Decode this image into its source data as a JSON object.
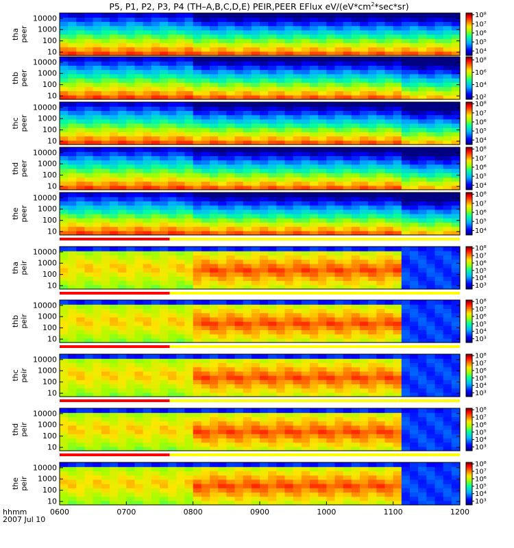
{
  "chart_data": {
    "type": "heatmap",
    "title": "P5, P1, P2, P3, P4 (TH-A,B,C,D,E) PEIR,PEER EFlux eV/(eV*cm^2*sec*sr)",
    "title_parts": {
      "main": "P5, P1, P2, P3, P4 (TH–A,B,C,D,E) PEIR,PEER EFlux eV/(eV*cm",
      "sup": "2",
      "tail": "*sec*sr)"
    },
    "x_axis": {
      "label_line1": "hhmm",
      "label_line2": "2007 Jul 10",
      "ticks": [
        "0600",
        "0700",
        "0800",
        "0900",
        "1000",
        "1100",
        "1200"
      ],
      "range_hours": [
        6,
        12
      ]
    },
    "y_axis": {
      "scale": "log",
      "ticks": [
        "10",
        "100",
        "1000",
        "10000"
      ],
      "range_eV": [
        5,
        30000
      ]
    },
    "panels": [
      {
        "probe": "tha",
        "species": "peer",
        "colorbar_ticks": [
          "10⁸",
          "10⁷",
          "10⁶",
          "10⁵",
          "10⁴"
        ],
        "flux_range": [
          3.5,
          8.2
        ]
      },
      {
        "probe": "thb",
        "species": "peer",
        "colorbar_ticks": [
          "10⁸",
          "10⁶",
          "10⁴",
          "10²"
        ],
        "flux_range": [
          1.6,
          8.5
        ]
      },
      {
        "probe": "thc",
        "species": "peer",
        "colorbar_ticks": [
          "10⁸",
          "10⁷",
          "10⁶",
          "10⁵",
          "10⁴"
        ],
        "flux_range": [
          3.5,
          8.2
        ]
      },
      {
        "probe": "thd",
        "species": "peer",
        "colorbar_ticks": [
          "10⁸",
          "10⁷",
          "10⁶",
          "10⁵",
          "10⁴"
        ],
        "flux_range": [
          3.5,
          8.2
        ]
      },
      {
        "probe": "the",
        "species": "peer",
        "colorbar_ticks": [
          "10⁸",
          "10⁷",
          "10⁶",
          "10⁵",
          "10⁴"
        ],
        "flux_range": [
          3.5,
          8.2
        ]
      },
      {
        "probe": "tha",
        "species": "peir",
        "colorbar_ticks": [
          "10⁸",
          "10⁷",
          "10⁶",
          "10⁵",
          "10⁴",
          "10³"
        ],
        "flux_range": [
          2.5,
          8.2
        ]
      },
      {
        "probe": "thb",
        "species": "peir",
        "colorbar_ticks": [
          "10⁸",
          "10⁷",
          "10⁶",
          "10⁵",
          "10⁴",
          "10³"
        ],
        "flux_range": [
          2.5,
          8.2
        ]
      },
      {
        "probe": "thc",
        "species": "peir",
        "colorbar_ticks": [
          "10⁸",
          "10⁷",
          "10⁶",
          "10⁵",
          "10⁴",
          "10³"
        ],
        "flux_range": [
          2.5,
          8.2
        ]
      },
      {
        "probe": "thd",
        "species": "peir",
        "colorbar_ticks": [
          "10⁸",
          "10⁷",
          "10⁶",
          "10⁵",
          "10⁴",
          "10³"
        ],
        "flux_range": [
          2.5,
          8.2
        ]
      },
      {
        "probe": "the",
        "species": "peir",
        "colorbar_ticks": [
          "10⁸",
          "10⁷",
          "10⁶",
          "10⁵",
          "10⁴",
          "10³"
        ],
        "flux_range": [
          2.5,
          8.2
        ]
      }
    ],
    "mode_bars": [
      {
        "after_panel": 4,
        "red_end_hour": 7.65
      },
      {
        "after_panel": 5,
        "red_end_hour": 7.65
      },
      {
        "after_panel": 6,
        "red_end_hour": 7.65
      },
      {
        "after_panel": 7,
        "red_end_hour": 7.65
      },
      {
        "after_panel": 8,
        "red_end_hour": 7.65
      }
    ],
    "colors": {
      "mode_red": "#ff0000",
      "mode_yellow": "#ffff00",
      "colormap": [
        "#000080",
        "#0000ff",
        "#00c8ff",
        "#00ff80",
        "#ffff00",
        "#ff8000",
        "#ff0000",
        "#8b0000"
      ]
    }
  }
}
